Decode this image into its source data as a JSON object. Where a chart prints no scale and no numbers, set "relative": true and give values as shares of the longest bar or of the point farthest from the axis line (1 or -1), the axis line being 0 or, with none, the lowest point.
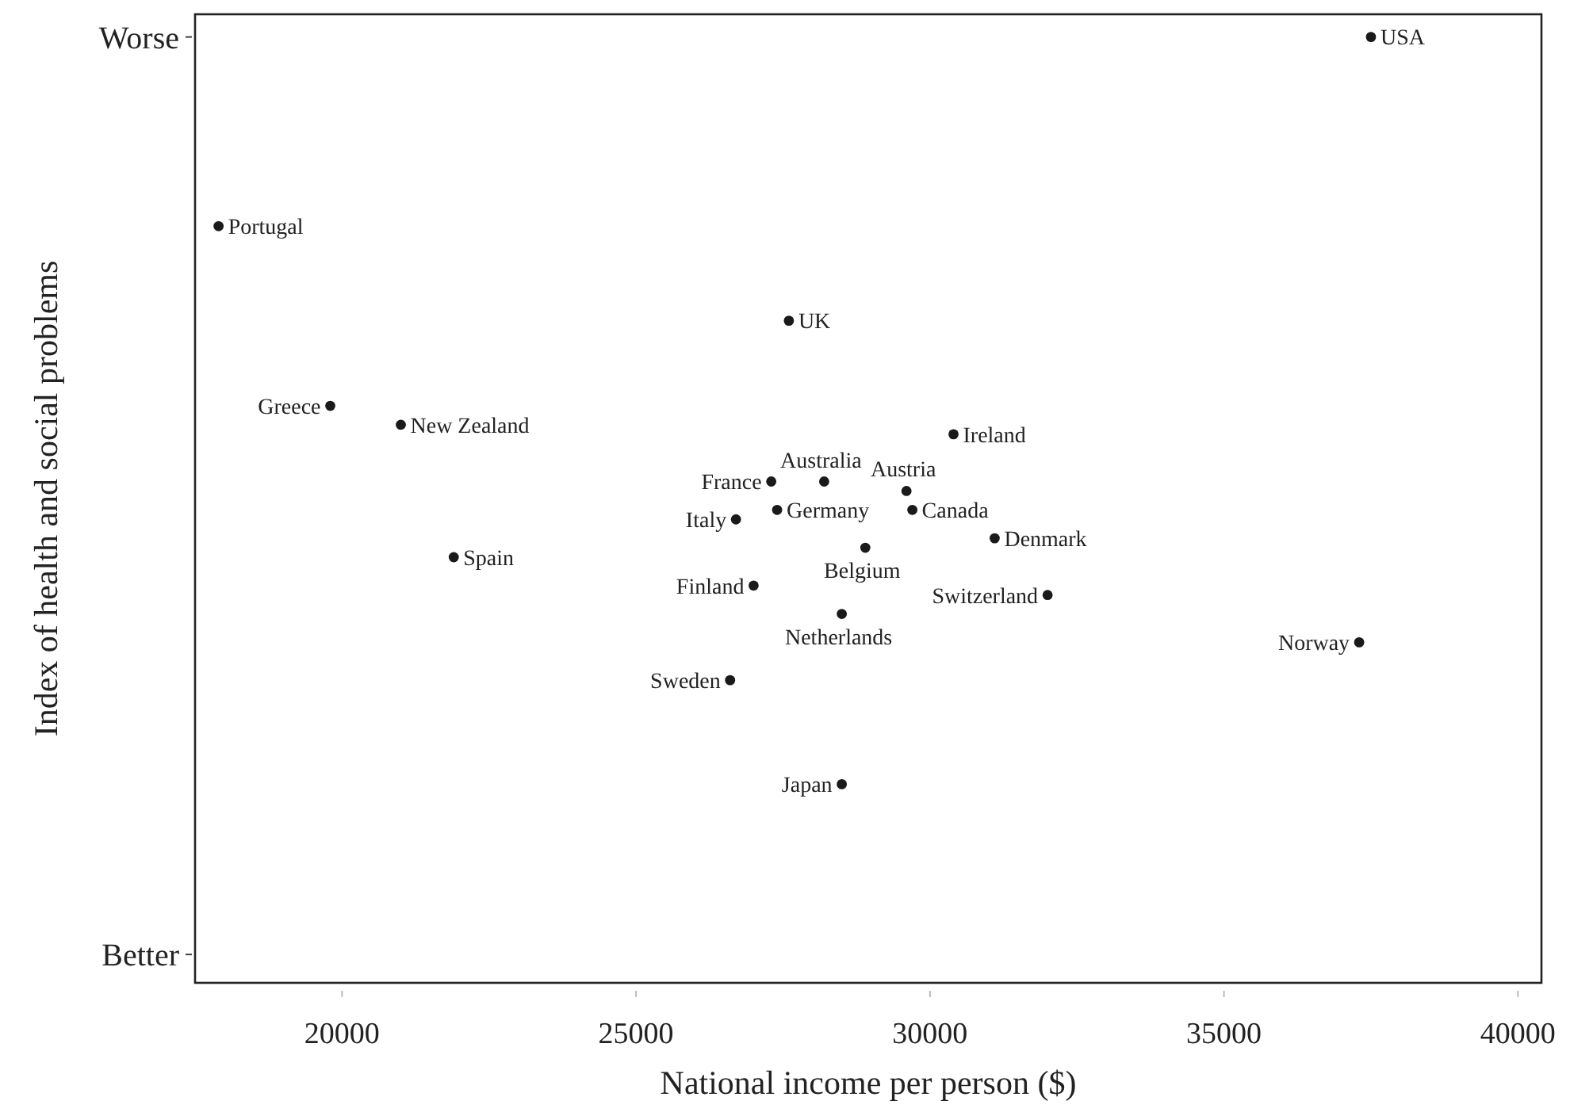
{
  "chart_data": {
    "type": "scatter",
    "xlabel": "National income per person ($)",
    "ylabel": "Index of health and social problems",
    "xlim": [
      17500,
      40400
    ],
    "xticks": [
      20000,
      25000,
      30000,
      35000,
      40000
    ],
    "relative": true,
    "grid": false,
    "marker": "circle",
    "series": [
      {
        "color": "#1a1a1a",
        "x": [
          37500,
          17900,
          27600,
          19800,
          21000,
          30400,
          28200,
          27300,
          29600,
          27400,
          29700,
          26700,
          31100,
          28900,
          21900,
          27000,
          32000,
          28500,
          37300,
          26600,
          28500
        ],
        "values": [
          1.0,
          0.8,
          0.7,
          0.61,
          0.59,
          0.58,
          0.53,
          0.53,
          0.52,
          0.5,
          0.5,
          0.49,
          0.47,
          0.46,
          0.45,
          0.42,
          0.41,
          0.39,
          0.36,
          0.32,
          0.21
        ]
      }
    ],
    "annotations": [
      "Worse",
      "Better",
      {
        "text": "USA",
        "x": 37500,
        "y": 1.0
      },
      {
        "text": "Portugal",
        "x": 17900,
        "y": 0.8
      },
      {
        "text": "UK",
        "x": 27600,
        "y": 0.7
      },
      {
        "text": "Greece",
        "x": 19800,
        "y": 0.61
      },
      {
        "text": "New Zealand",
        "x": 21000,
        "y": 0.59
      },
      {
        "text": "Ireland",
        "x": 30400,
        "y": 0.58
      },
      {
        "text": "Australia",
        "x": 28200,
        "y": 0.53
      },
      {
        "text": "France",
        "x": 27300,
        "y": 0.53
      },
      {
        "text": "Austria",
        "x": 29600,
        "y": 0.52
      },
      {
        "text": "Germany",
        "x": 27400,
        "y": 0.5
      },
      {
        "text": "Canada",
        "x": 29700,
        "y": 0.5
      },
      {
        "text": "Italy",
        "x": 26700,
        "y": 0.49
      },
      {
        "text": "Denmark",
        "x": 31100,
        "y": 0.47
      },
      {
        "text": "Belgium",
        "x": 28900,
        "y": 0.46
      },
      {
        "text": "Spain",
        "x": 21900,
        "y": 0.45
      },
      {
        "text": "Finland",
        "x": 27000,
        "y": 0.42
      },
      {
        "text": "Switzerland",
        "x": 32000,
        "y": 0.41
      },
      {
        "text": "Netherlands",
        "x": 28500,
        "y": 0.39
      },
      {
        "text": "Norway",
        "x": 37300,
        "y": 0.36
      },
      {
        "text": "Sweden",
        "x": 26600,
        "y": 0.32
      },
      {
        "text": "Japan",
        "x": 28500,
        "y": 0.21
      }
    ]
  }
}
